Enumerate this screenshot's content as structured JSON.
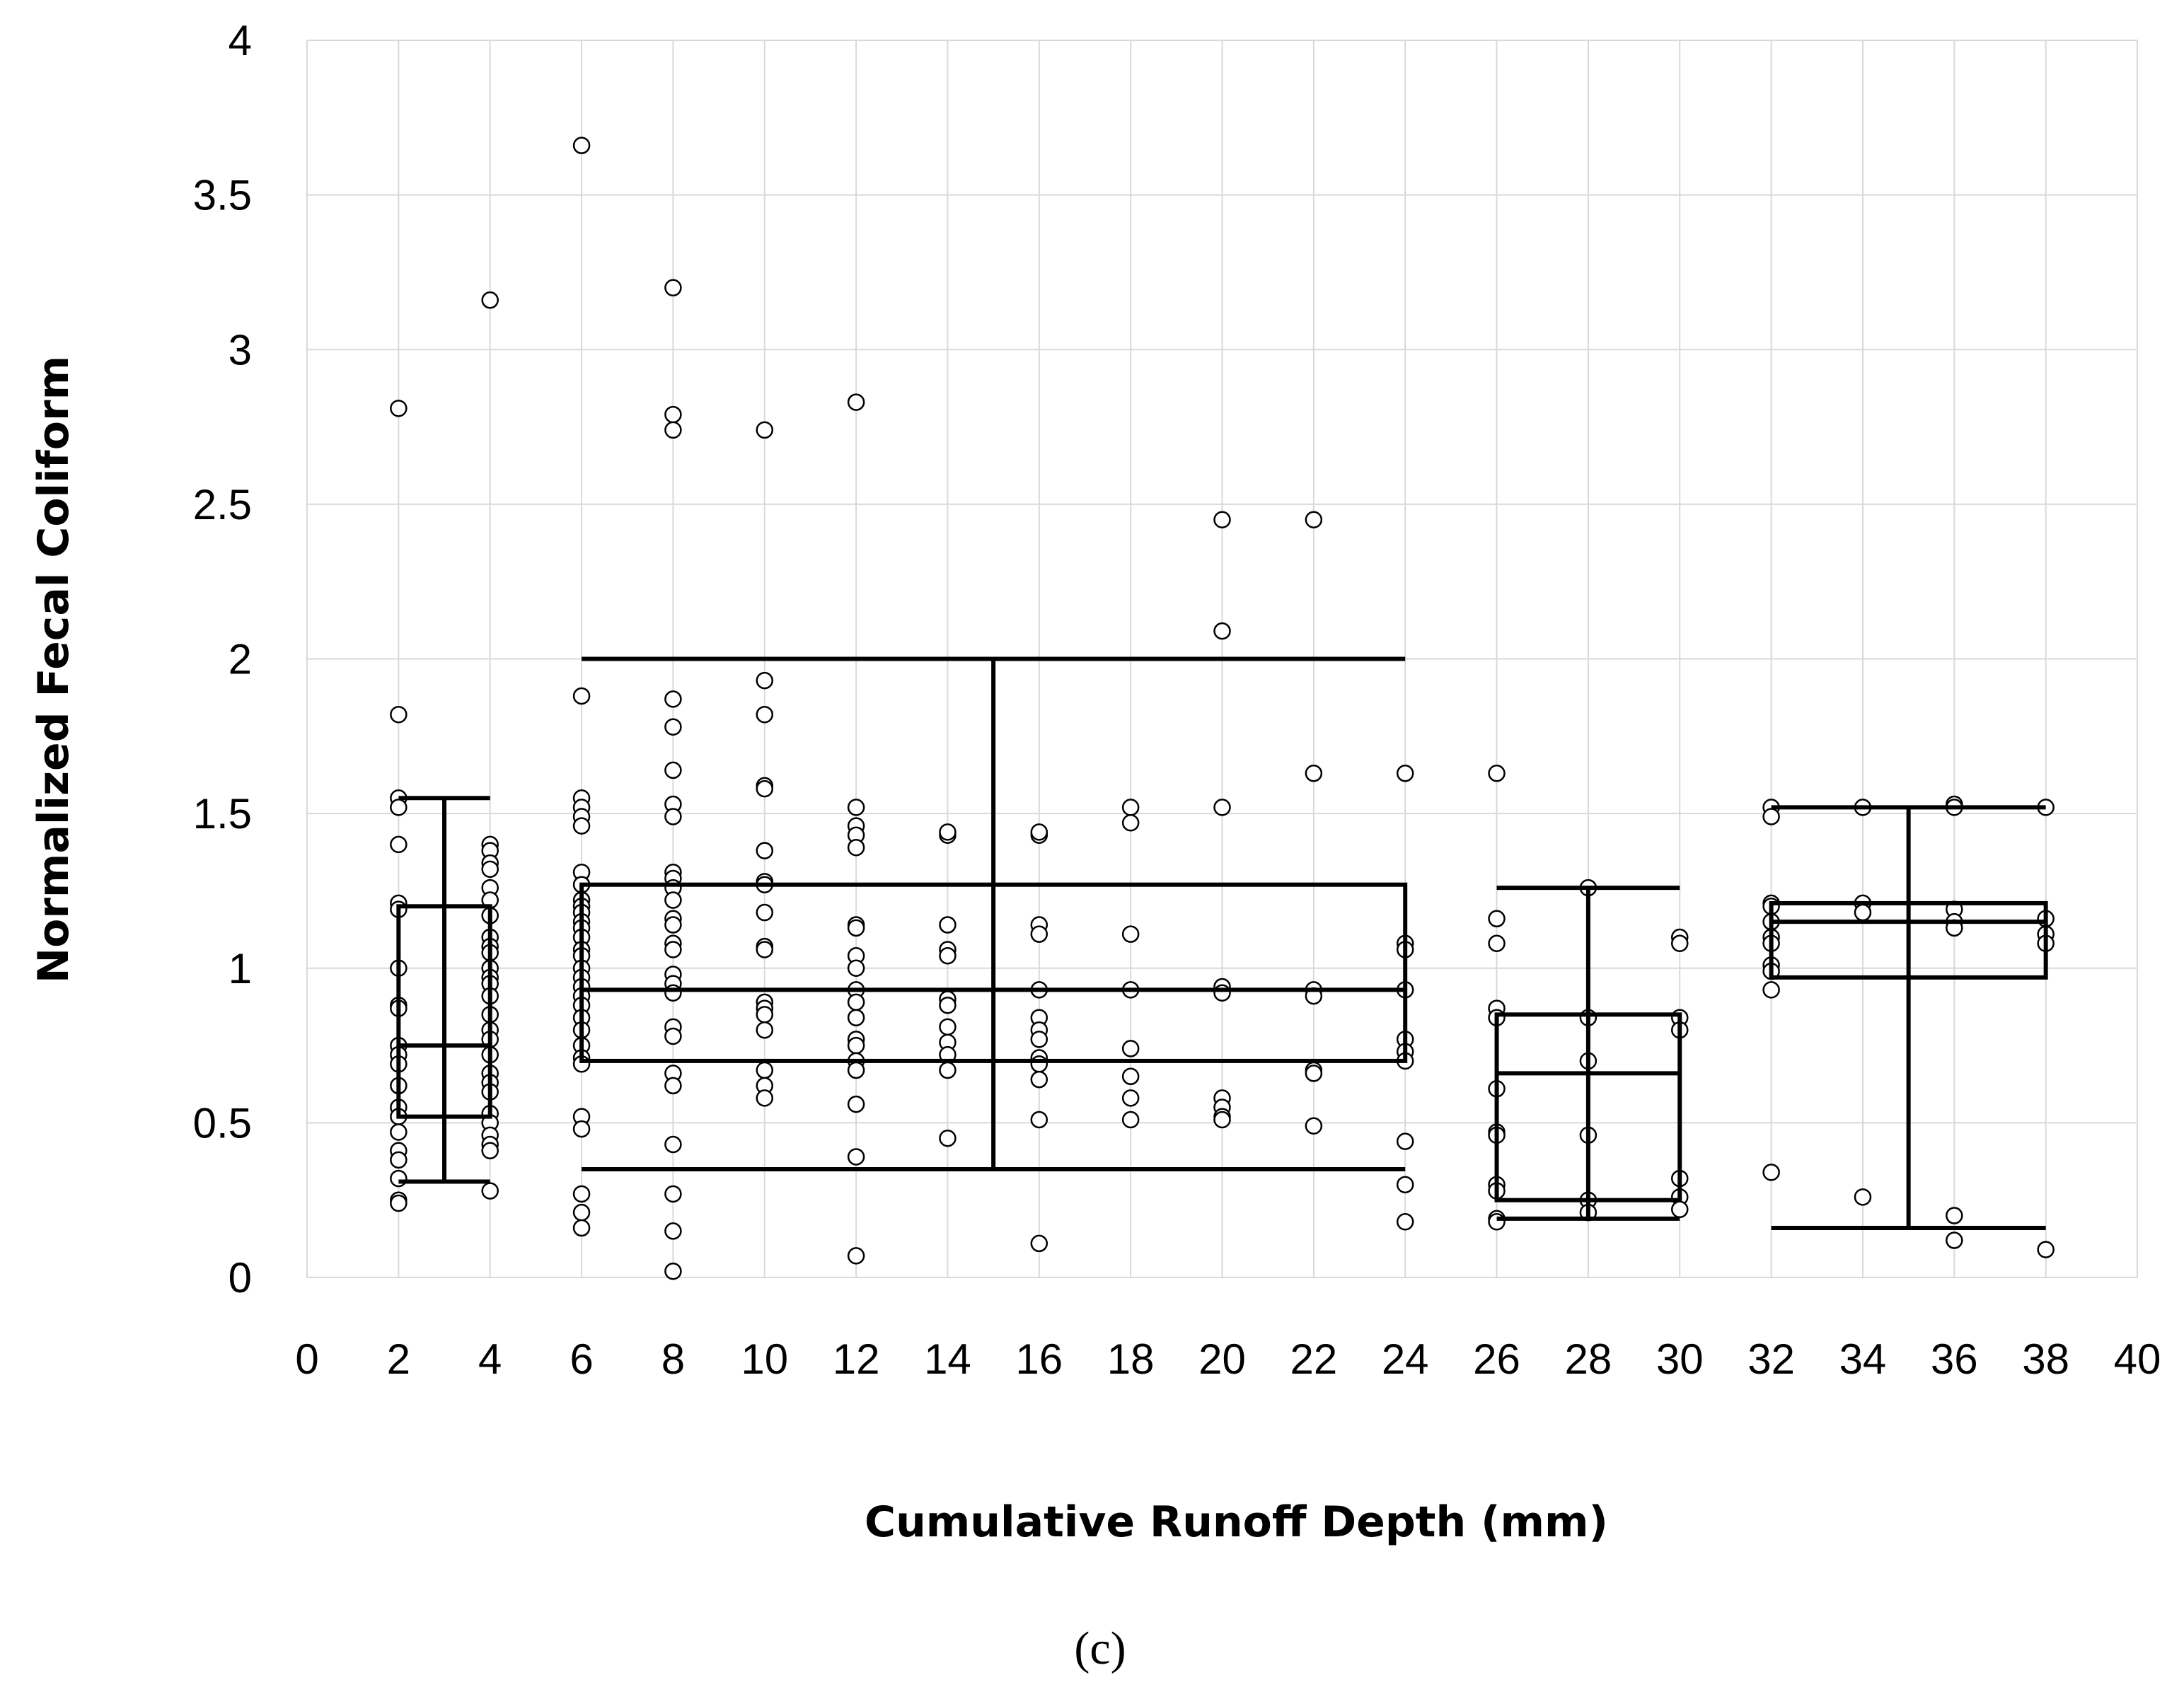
{
  "panel_label": "(c)",
  "chart_data": {
    "type": "scatter",
    "title": "",
    "xlabel": "Cumulative Runoff Depth (mm)",
    "ylabel": "Normalized Fecal Coliform",
    "xlim": [
      0,
      40
    ],
    "ylim": [
      0,
      4
    ],
    "xticks": [
      0,
      2,
      4,
      6,
      8,
      10,
      12,
      14,
      16,
      18,
      20,
      22,
      24,
      26,
      28,
      30,
      32,
      34,
      36,
      38,
      40
    ],
    "yticks": [
      0,
      0.5,
      1,
      1.5,
      2,
      2.5,
      3,
      3.5,
      4
    ],
    "xtick_labels": [
      "0",
      "2",
      "4",
      "6",
      "8",
      "10",
      "12",
      "14",
      "16",
      "18",
      "20",
      "22",
      "24",
      "26",
      "28",
      "30",
      "32",
      "34",
      "36",
      "38",
      "40"
    ],
    "ytick_labels": [
      "0",
      "0.5",
      "1",
      "1.5",
      "2",
      "2.5",
      "3",
      "3.5",
      "4"
    ],
    "grid": true,
    "points": [
      {
        "x": 2,
        "y": 2.81
      },
      {
        "x": 2,
        "y": 1.82
      },
      {
        "x": 2,
        "y": 1.55
      },
      {
        "x": 2,
        "y": 1.52
      },
      {
        "x": 2,
        "y": 1.4
      },
      {
        "x": 2,
        "y": 1.21
      },
      {
        "x": 2,
        "y": 1.19
      },
      {
        "x": 2,
        "y": 1.0
      },
      {
        "x": 2,
        "y": 0.88
      },
      {
        "x": 2,
        "y": 0.87
      },
      {
        "x": 2,
        "y": 0.75
      },
      {
        "x": 2,
        "y": 0.72
      },
      {
        "x": 2,
        "y": 0.69
      },
      {
        "x": 2,
        "y": 0.62
      },
      {
        "x": 2,
        "y": 0.55
      },
      {
        "x": 2,
        "y": 0.52
      },
      {
        "x": 2,
        "y": 0.47
      },
      {
        "x": 2,
        "y": 0.41
      },
      {
        "x": 2,
        "y": 0.38
      },
      {
        "x": 2,
        "y": 0.32
      },
      {
        "x": 2,
        "y": 0.25
      },
      {
        "x": 2,
        "y": 0.24
      },
      {
        "x": 4,
        "y": 3.16
      },
      {
        "x": 4,
        "y": 1.4
      },
      {
        "x": 4,
        "y": 1.38
      },
      {
        "x": 4,
        "y": 1.34
      },
      {
        "x": 4,
        "y": 1.32
      },
      {
        "x": 4,
        "y": 1.26
      },
      {
        "x": 4,
        "y": 1.22
      },
      {
        "x": 4,
        "y": 1.17
      },
      {
        "x": 4,
        "y": 1.1
      },
      {
        "x": 4,
        "y": 1.07
      },
      {
        "x": 4,
        "y": 1.05
      },
      {
        "x": 4,
        "y": 1.0
      },
      {
        "x": 4,
        "y": 0.97
      },
      {
        "x": 4,
        "y": 0.95
      },
      {
        "x": 4,
        "y": 0.91
      },
      {
        "x": 4,
        "y": 0.85
      },
      {
        "x": 4,
        "y": 0.8
      },
      {
        "x": 4,
        "y": 0.77
      },
      {
        "x": 4,
        "y": 0.72
      },
      {
        "x": 4,
        "y": 0.66
      },
      {
        "x": 4,
        "y": 0.63
      },
      {
        "x": 4,
        "y": 0.6
      },
      {
        "x": 4,
        "y": 0.53
      },
      {
        "x": 4,
        "y": 0.5
      },
      {
        "x": 4,
        "y": 0.46
      },
      {
        "x": 4,
        "y": 0.43
      },
      {
        "x": 4,
        "y": 0.41
      },
      {
        "x": 4,
        "y": 0.28
      },
      {
        "x": 6,
        "y": 3.66
      },
      {
        "x": 6,
        "y": 1.88
      },
      {
        "x": 6,
        "y": 1.55
      },
      {
        "x": 6,
        "y": 1.52
      },
      {
        "x": 6,
        "y": 1.49
      },
      {
        "x": 6,
        "y": 1.46
      },
      {
        "x": 6,
        "y": 1.31
      },
      {
        "x": 6,
        "y": 1.27
      },
      {
        "x": 6,
        "y": 1.22
      },
      {
        "x": 6,
        "y": 1.2
      },
      {
        "x": 6,
        "y": 1.18
      },
      {
        "x": 6,
        "y": 1.15
      },
      {
        "x": 6,
        "y": 1.13
      },
      {
        "x": 6,
        "y": 1.1
      },
      {
        "x": 6,
        "y": 1.06
      },
      {
        "x": 6,
        "y": 1.04
      },
      {
        "x": 6,
        "y": 1.0
      },
      {
        "x": 6,
        "y": 0.97
      },
      {
        "x": 6,
        "y": 0.94
      },
      {
        "x": 6,
        "y": 0.91
      },
      {
        "x": 6,
        "y": 0.88
      },
      {
        "x": 6,
        "y": 0.84
      },
      {
        "x": 6,
        "y": 0.8
      },
      {
        "x": 6,
        "y": 0.75
      },
      {
        "x": 6,
        "y": 0.71
      },
      {
        "x": 6,
        "y": 0.69
      },
      {
        "x": 6,
        "y": 0.52
      },
      {
        "x": 6,
        "y": 0.48
      },
      {
        "x": 6,
        "y": 0.27
      },
      {
        "x": 6,
        "y": 0.21
      },
      {
        "x": 6,
        "y": 0.16
      },
      {
        "x": 8,
        "y": 3.2
      },
      {
        "x": 8,
        "y": 2.79
      },
      {
        "x": 8,
        "y": 2.74
      },
      {
        "x": 8,
        "y": 1.87
      },
      {
        "x": 8,
        "y": 1.78
      },
      {
        "x": 8,
        "y": 1.64
      },
      {
        "x": 8,
        "y": 1.53
      },
      {
        "x": 8,
        "y": 1.49
      },
      {
        "x": 8,
        "y": 1.31
      },
      {
        "x": 8,
        "y": 1.29
      },
      {
        "x": 8,
        "y": 1.26
      },
      {
        "x": 8,
        "y": 1.22
      },
      {
        "x": 8,
        "y": 1.16
      },
      {
        "x": 8,
        "y": 1.14
      },
      {
        "x": 8,
        "y": 1.08
      },
      {
        "x": 8,
        "y": 1.06
      },
      {
        "x": 8,
        "y": 0.98
      },
      {
        "x": 8,
        "y": 0.95
      },
      {
        "x": 8,
        "y": 0.92
      },
      {
        "x": 8,
        "y": 0.81
      },
      {
        "x": 8,
        "y": 0.78
      },
      {
        "x": 8,
        "y": 0.66
      },
      {
        "x": 8,
        "y": 0.62
      },
      {
        "x": 8,
        "y": 0.43
      },
      {
        "x": 8,
        "y": 0.27
      },
      {
        "x": 8,
        "y": 0.15
      },
      {
        "x": 8,
        "y": 0.02
      },
      {
        "x": 10,
        "y": 2.74
      },
      {
        "x": 10,
        "y": 1.93
      },
      {
        "x": 10,
        "y": 1.82
      },
      {
        "x": 10,
        "y": 1.59
      },
      {
        "x": 10,
        "y": 1.58
      },
      {
        "x": 10,
        "y": 1.38
      },
      {
        "x": 10,
        "y": 1.28
      },
      {
        "x": 10,
        "y": 1.27
      },
      {
        "x": 10,
        "y": 1.18
      },
      {
        "x": 10,
        "y": 1.07
      },
      {
        "x": 10,
        "y": 1.06
      },
      {
        "x": 10,
        "y": 0.89
      },
      {
        "x": 10,
        "y": 0.87
      },
      {
        "x": 10,
        "y": 0.85
      },
      {
        "x": 10,
        "y": 0.8
      },
      {
        "x": 10,
        "y": 0.67
      },
      {
        "x": 10,
        "y": 0.62
      },
      {
        "x": 10,
        "y": 0.58
      },
      {
        "x": 12,
        "y": 2.83
      },
      {
        "x": 12,
        "y": 1.52
      },
      {
        "x": 12,
        "y": 1.46
      },
      {
        "x": 12,
        "y": 1.43
      },
      {
        "x": 12,
        "y": 1.39
      },
      {
        "x": 12,
        "y": 1.14
      },
      {
        "x": 12,
        "y": 1.13
      },
      {
        "x": 12,
        "y": 1.04
      },
      {
        "x": 12,
        "y": 1.0
      },
      {
        "x": 12,
        "y": 0.93
      },
      {
        "x": 12,
        "y": 0.89
      },
      {
        "x": 12,
        "y": 0.84
      },
      {
        "x": 12,
        "y": 0.77
      },
      {
        "x": 12,
        "y": 0.75
      },
      {
        "x": 12,
        "y": 0.7
      },
      {
        "x": 12,
        "y": 0.67
      },
      {
        "x": 12,
        "y": 0.56
      },
      {
        "x": 12,
        "y": 0.39
      },
      {
        "x": 12,
        "y": 0.07
      },
      {
        "x": 14,
        "y": 1.43
      },
      {
        "x": 14,
        "y": 1.44
      },
      {
        "x": 14,
        "y": 1.14
      },
      {
        "x": 14,
        "y": 1.06
      },
      {
        "x": 14,
        "y": 1.04
      },
      {
        "x": 14,
        "y": 0.9
      },
      {
        "x": 14,
        "y": 0.88
      },
      {
        "x": 14,
        "y": 0.81
      },
      {
        "x": 14,
        "y": 0.76
      },
      {
        "x": 14,
        "y": 0.72
      },
      {
        "x": 14,
        "y": 0.67
      },
      {
        "x": 14,
        "y": 0.45
      },
      {
        "x": 16,
        "y": 1.43
      },
      {
        "x": 16,
        "y": 1.44
      },
      {
        "x": 16,
        "y": 1.14
      },
      {
        "x": 16,
        "y": 1.11
      },
      {
        "x": 16,
        "y": 0.93
      },
      {
        "x": 16,
        "y": 0.84
      },
      {
        "x": 16,
        "y": 0.8
      },
      {
        "x": 16,
        "y": 0.77
      },
      {
        "x": 16,
        "y": 0.71
      },
      {
        "x": 16,
        "y": 0.69
      },
      {
        "x": 16,
        "y": 0.64
      },
      {
        "x": 16,
        "y": 0.51
      },
      {
        "x": 16,
        "y": 0.11
      },
      {
        "x": 18,
        "y": 1.52
      },
      {
        "x": 18,
        "y": 1.47
      },
      {
        "x": 18,
        "y": 1.11
      },
      {
        "x": 18,
        "y": 0.93
      },
      {
        "x": 18,
        "y": 0.74
      },
      {
        "x": 18,
        "y": 0.65
      },
      {
        "x": 18,
        "y": 0.58
      },
      {
        "x": 18,
        "y": 0.51
      },
      {
        "x": 20,
        "y": 2.45
      },
      {
        "x": 20,
        "y": 2.09
      },
      {
        "x": 20,
        "y": 1.52
      },
      {
        "x": 20,
        "y": 0.94
      },
      {
        "x": 20,
        "y": 0.92
      },
      {
        "x": 20,
        "y": 0.58
      },
      {
        "x": 20,
        "y": 0.55
      },
      {
        "x": 20,
        "y": 0.52
      },
      {
        "x": 20,
        "y": 0.51
      },
      {
        "x": 22,
        "y": 2.45
      },
      {
        "x": 22,
        "y": 1.63
      },
      {
        "x": 22,
        "y": 0.93
      },
      {
        "x": 22,
        "y": 0.91
      },
      {
        "x": 22,
        "y": 0.67
      },
      {
        "x": 22,
        "y": 0.66
      },
      {
        "x": 22,
        "y": 0.49
      },
      {
        "x": 24,
        "y": 1.63
      },
      {
        "x": 24,
        "y": 1.08
      },
      {
        "x": 24,
        "y": 1.06
      },
      {
        "x": 24,
        "y": 0.93
      },
      {
        "x": 24,
        "y": 0.77
      },
      {
        "x": 24,
        "y": 0.73
      },
      {
        "x": 24,
        "y": 0.7
      },
      {
        "x": 24,
        "y": 0.44
      },
      {
        "x": 24,
        "y": 0.3
      },
      {
        "x": 24,
        "y": 0.18
      },
      {
        "x": 26,
        "y": 1.63
      },
      {
        "x": 26,
        "y": 1.16
      },
      {
        "x": 26,
        "y": 1.08
      },
      {
        "x": 26,
        "y": 0.87
      },
      {
        "x": 26,
        "y": 0.84
      },
      {
        "x": 26,
        "y": 0.61
      },
      {
        "x": 26,
        "y": 0.47
      },
      {
        "x": 26,
        "y": 0.46
      },
      {
        "x": 26,
        "y": 0.3
      },
      {
        "x": 26,
        "y": 0.28
      },
      {
        "x": 26,
        "y": 0.19
      },
      {
        "x": 26,
        "y": 0.18
      },
      {
        "x": 28,
        "y": 1.26
      },
      {
        "x": 28,
        "y": 0.84
      },
      {
        "x": 28,
        "y": 0.7
      },
      {
        "x": 28,
        "y": 0.46
      },
      {
        "x": 28,
        "y": 0.25
      },
      {
        "x": 28,
        "y": 0.21
      },
      {
        "x": 30,
        "y": 1.1
      },
      {
        "x": 30,
        "y": 1.08
      },
      {
        "x": 30,
        "y": 0.84
      },
      {
        "x": 30,
        "y": 0.8
      },
      {
        "x": 30,
        "y": 0.32
      },
      {
        "x": 30,
        "y": 0.26
      },
      {
        "x": 30,
        "y": 0.22
      },
      {
        "x": 32,
        "y": 1.52
      },
      {
        "x": 32,
        "y": 1.49
      },
      {
        "x": 32,
        "y": 1.21
      },
      {
        "x": 32,
        "y": 1.2
      },
      {
        "x": 32,
        "y": 1.15
      },
      {
        "x": 32,
        "y": 1.1
      },
      {
        "x": 32,
        "y": 1.08
      },
      {
        "x": 32,
        "y": 1.01
      },
      {
        "x": 32,
        "y": 0.99
      },
      {
        "x": 32,
        "y": 0.93
      },
      {
        "x": 32,
        "y": 0.34
      },
      {
        "x": 34,
        "y": 1.52
      },
      {
        "x": 34,
        "y": 1.21
      },
      {
        "x": 34,
        "y": 1.18
      },
      {
        "x": 34,
        "y": 0.26
      },
      {
        "x": 36,
        "y": 1.53
      },
      {
        "x": 36,
        "y": 1.52
      },
      {
        "x": 36,
        "y": 1.19
      },
      {
        "x": 36,
        "y": 1.15
      },
      {
        "x": 36,
        "y": 1.13
      },
      {
        "x": 36,
        "y": 0.2
      },
      {
        "x": 36,
        "y": 0.12
      },
      {
        "x": 38,
        "y": 1.52
      },
      {
        "x": 38,
        "y": 1.16
      },
      {
        "x": 38,
        "y": 1.11
      },
      {
        "x": 38,
        "y": 1.08
      },
      {
        "x": 38,
        "y": 0.09
      }
    ],
    "boxes": [
      {
        "x_start": 2,
        "x_end": 4,
        "x_center": 3,
        "whisker_low": 0.31,
        "q1": 0.52,
        "median": 0.75,
        "q3": 1.2,
        "whisker_high": 1.55
      },
      {
        "x_start": 6,
        "x_end": 24,
        "x_center": 15,
        "whisker_low": 0.35,
        "q1": 0.7,
        "median": 0.93,
        "q3": 1.27,
        "whisker_high": 2.0
      },
      {
        "x_start": 26,
        "x_end": 30,
        "x_center": 28,
        "whisker_low": 0.19,
        "q1": 0.25,
        "median": 0.66,
        "q3": 0.85,
        "whisker_high": 1.26
      },
      {
        "x_start": 32,
        "x_end": 38,
        "x_center": 35,
        "whisker_low": 0.16,
        "q1": 0.97,
        "median": 1.15,
        "q3": 1.21,
        "whisker_high": 1.52
      }
    ]
  }
}
